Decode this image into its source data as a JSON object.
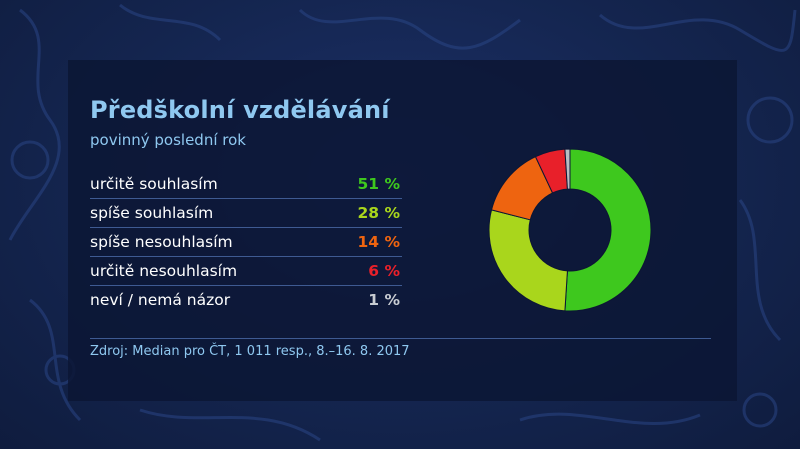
{
  "title": "Předškolní vzdělávání",
  "subtitle": "povinný poslední rok",
  "source": "Zdroj: Median pro ČT, 1 011 resp., 8.–16. 8. 2017",
  "rows": [
    {
      "label": "určitě souhlasím",
      "value_text": "51 %",
      "color": "#3ec81e"
    },
    {
      "label": "spíše souhlasím",
      "value_text": "28 %",
      "color": "#a9d61c"
    },
    {
      "label": "spíše nesouhlasím",
      "value_text": "14 %",
      "color": "#ee6410"
    },
    {
      "label": "určitě nesouhlasím",
      "value_text": "6 %",
      "color": "#e8202a"
    },
    {
      "label": "neví / nemá názor",
      "value_text": "1 %",
      "color": "#b8bcc2"
    }
  ],
  "chart_data": {
    "type": "pie",
    "categories": [
      "určitě souhlasím",
      "spíše souhlasím",
      "spíše nesouhlasím",
      "určitě nesouhlasím",
      "neví / nemá názor"
    ],
    "values": [
      51,
      28,
      14,
      6,
      1
    ],
    "colors": [
      "#3ec81e",
      "#a9d61c",
      "#ee6410",
      "#e8202a",
      "#b8bcc2"
    ],
    "title": "Předškolní vzdělávání",
    "subtitle": "povinný poslední rok"
  }
}
